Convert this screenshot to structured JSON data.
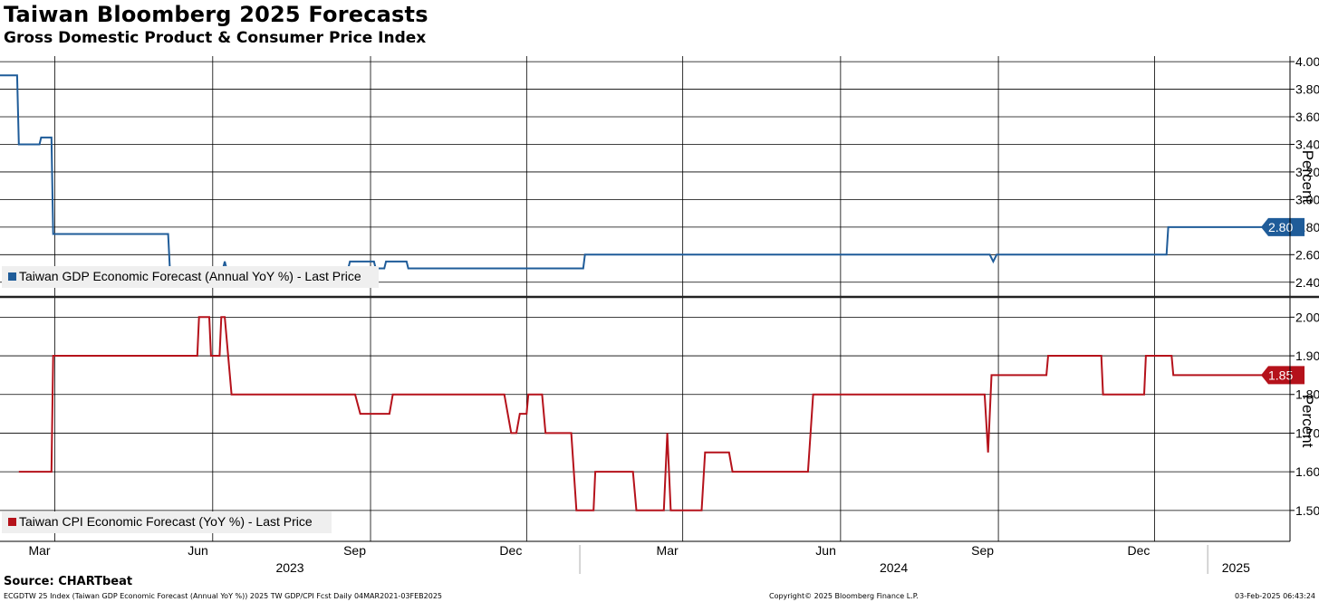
{
  "header": {
    "title": "Taiwan Bloomberg 2025 Forecasts",
    "subtitle": "Gross Domestic Product & Consumer Price Index"
  },
  "footer": {
    "source": "Source: CHARTbeat",
    "left": "ECGDTW 25 Index (Taiwan GDP Economic Forecast (Annual YoY %)) 2025 TW GDP/CPI Fcst  Daily 04MAR2021-03FEB2025",
    "center": "Copyright© 2025 Bloomberg Finance L.P.",
    "right": "03-Feb-2025 06:43:24"
  },
  "colors": {
    "gdp": "#1f5c99",
    "cpi": "#b5121b",
    "grid": "#000000"
  },
  "x_axis": {
    "month_ticks": [
      {
        "label": "Mar",
        "date": "2023-03-01"
      },
      {
        "label": "Jun",
        "date": "2023-06-01"
      },
      {
        "label": "Sep",
        "date": "2023-09-01"
      },
      {
        "label": "Dec",
        "date": "2023-12-01"
      },
      {
        "label": "Mar",
        "date": "2024-03-01"
      },
      {
        "label": "Jun",
        "date": "2024-06-01"
      },
      {
        "label": "Sep",
        "date": "2024-09-01"
      },
      {
        "label": "Dec",
        "date": "2024-12-01"
      }
    ],
    "years": [
      {
        "label": "2023",
        "start": "2023-01-01",
        "end": "2024-01-01"
      },
      {
        "label": "2024",
        "start": "2024-01-01",
        "end": "2025-01-01"
      },
      {
        "label": "2025",
        "start": "2025-01-01",
        "end": "2025-02-03"
      }
    ]
  },
  "chart_data": [
    {
      "type": "line",
      "panel": "top",
      "ylabel": "Percent",
      "ylim": [
        2.3,
        4.04
      ],
      "yticks": [
        "2.40",
        "2.60",
        "2.80",
        "3.00",
        "3.20",
        "3.40",
        "3.60",
        "3.80",
        "4.00"
      ],
      "xlim": [
        "2023-01-28",
        "2025-02-18"
      ],
      "legend_label": "Taiwan GDP Economic Forecast (Annual YoY %) - Last Price",
      "last_value": "2.80",
      "series": [
        {
          "name": "Taiwan GDP Economic Forecast (Annual YoY %) - Last Price",
          "points": [
            [
              "2023-01-28",
              3.9
            ],
            [
              "2023-02-07",
              3.9
            ],
            [
              "2023-02-08",
              3.4
            ],
            [
              "2023-02-20",
              3.4
            ],
            [
              "2023-02-21",
              3.45
            ],
            [
              "2023-02-27",
              3.45
            ],
            [
              "2023-02-28",
              2.75
            ],
            [
              "2023-05-06",
              2.75
            ],
            [
              "2023-05-07",
              2.5
            ],
            [
              "2023-06-07",
              2.5
            ],
            [
              "2023-06-08",
              2.55
            ],
            [
              "2023-06-09",
              2.5
            ],
            [
              "2023-08-19",
              2.5
            ],
            [
              "2023-08-20",
              2.55
            ],
            [
              "2023-09-03",
              2.55
            ],
            [
              "2023-09-04",
              2.5
            ],
            [
              "2023-09-09",
              2.5
            ],
            [
              "2023-09-10",
              2.55
            ],
            [
              "2023-09-22",
              2.55
            ],
            [
              "2023-09-23",
              2.5
            ],
            [
              "2024-01-03",
              2.5
            ],
            [
              "2024-01-04",
              2.6
            ],
            [
              "2024-08-27",
              2.6
            ],
            [
              "2024-08-29",
              2.55
            ],
            [
              "2024-08-31",
              2.6
            ],
            [
              "2024-12-08",
              2.6
            ],
            [
              "2024-12-09",
              2.8
            ],
            [
              "2025-02-03",
              2.8
            ]
          ]
        }
      ]
    },
    {
      "type": "line",
      "panel": "bottom",
      "ylabel": "Percent",
      "ylim": [
        1.42,
        2.05
      ],
      "yticks": [
        "1.50",
        "1.60",
        "1.70",
        "1.80",
        "1.90",
        "2.00"
      ],
      "xlim": [
        "2023-01-28",
        "2025-02-18"
      ],
      "legend_label": "Taiwan CPI Economic Forecast (YoY %) - Last Price",
      "last_value": "1.85",
      "series": [
        {
          "name": "Taiwan CPI Economic Forecast (YoY %) - Last Price",
          "points": [
            [
              "2023-02-08",
              1.6
            ],
            [
              "2023-02-27",
              1.6
            ],
            [
              "2023-02-28",
              1.9
            ],
            [
              "2023-05-23",
              1.9
            ],
            [
              "2023-05-24",
              2.0
            ],
            [
              "2023-05-30",
              2.0
            ],
            [
              "2023-05-31",
              1.9
            ],
            [
              "2023-06-05",
              1.9
            ],
            [
              "2023-06-06",
              2.0
            ],
            [
              "2023-06-08",
              2.0
            ],
            [
              "2023-06-12",
              1.8
            ],
            [
              "2023-08-23",
              1.8
            ],
            [
              "2023-08-26",
              1.75
            ],
            [
              "2023-09-12",
              1.75
            ],
            [
              "2023-09-14",
              1.8
            ],
            [
              "2023-11-18",
              1.8
            ],
            [
              "2023-11-20",
              1.75
            ],
            [
              "2023-11-22",
              1.7
            ],
            [
              "2023-11-25",
              1.7
            ],
            [
              "2023-11-27",
              1.75
            ],
            [
              "2023-12-01",
              1.75
            ],
            [
              "2023-12-02",
              1.8
            ],
            [
              "2023-12-10",
              1.8
            ],
            [
              "2023-12-12",
              1.7
            ],
            [
              "2023-12-27",
              1.7
            ],
            [
              "2023-12-30",
              1.5
            ],
            [
              "2024-01-09",
              1.5
            ],
            [
              "2024-01-10",
              1.6
            ],
            [
              "2024-02-01",
              1.6
            ],
            [
              "2024-02-03",
              1.5
            ],
            [
              "2024-02-19",
              1.5
            ],
            [
              "2024-02-21",
              1.7
            ],
            [
              "2024-02-23",
              1.5
            ],
            [
              "2024-03-12",
              1.5
            ],
            [
              "2024-03-14",
              1.65
            ],
            [
              "2024-03-28",
              1.65
            ],
            [
              "2024-03-30",
              1.6
            ],
            [
              "2024-05-13",
              1.6
            ],
            [
              "2024-05-16",
              1.8
            ],
            [
              "2024-08-24",
              1.8
            ],
            [
              "2024-08-26",
              1.65
            ],
            [
              "2024-08-28",
              1.85
            ],
            [
              "2024-09-29",
              1.85
            ],
            [
              "2024-09-30",
              1.9
            ],
            [
              "2024-10-31",
              1.9
            ],
            [
              "2024-11-01",
              1.8
            ],
            [
              "2024-11-25",
              1.8
            ],
            [
              "2024-11-26",
              1.9
            ],
            [
              "2024-12-11",
              1.9
            ],
            [
              "2024-12-12",
              1.85
            ],
            [
              "2025-02-03",
              1.85
            ]
          ]
        }
      ]
    }
  ]
}
